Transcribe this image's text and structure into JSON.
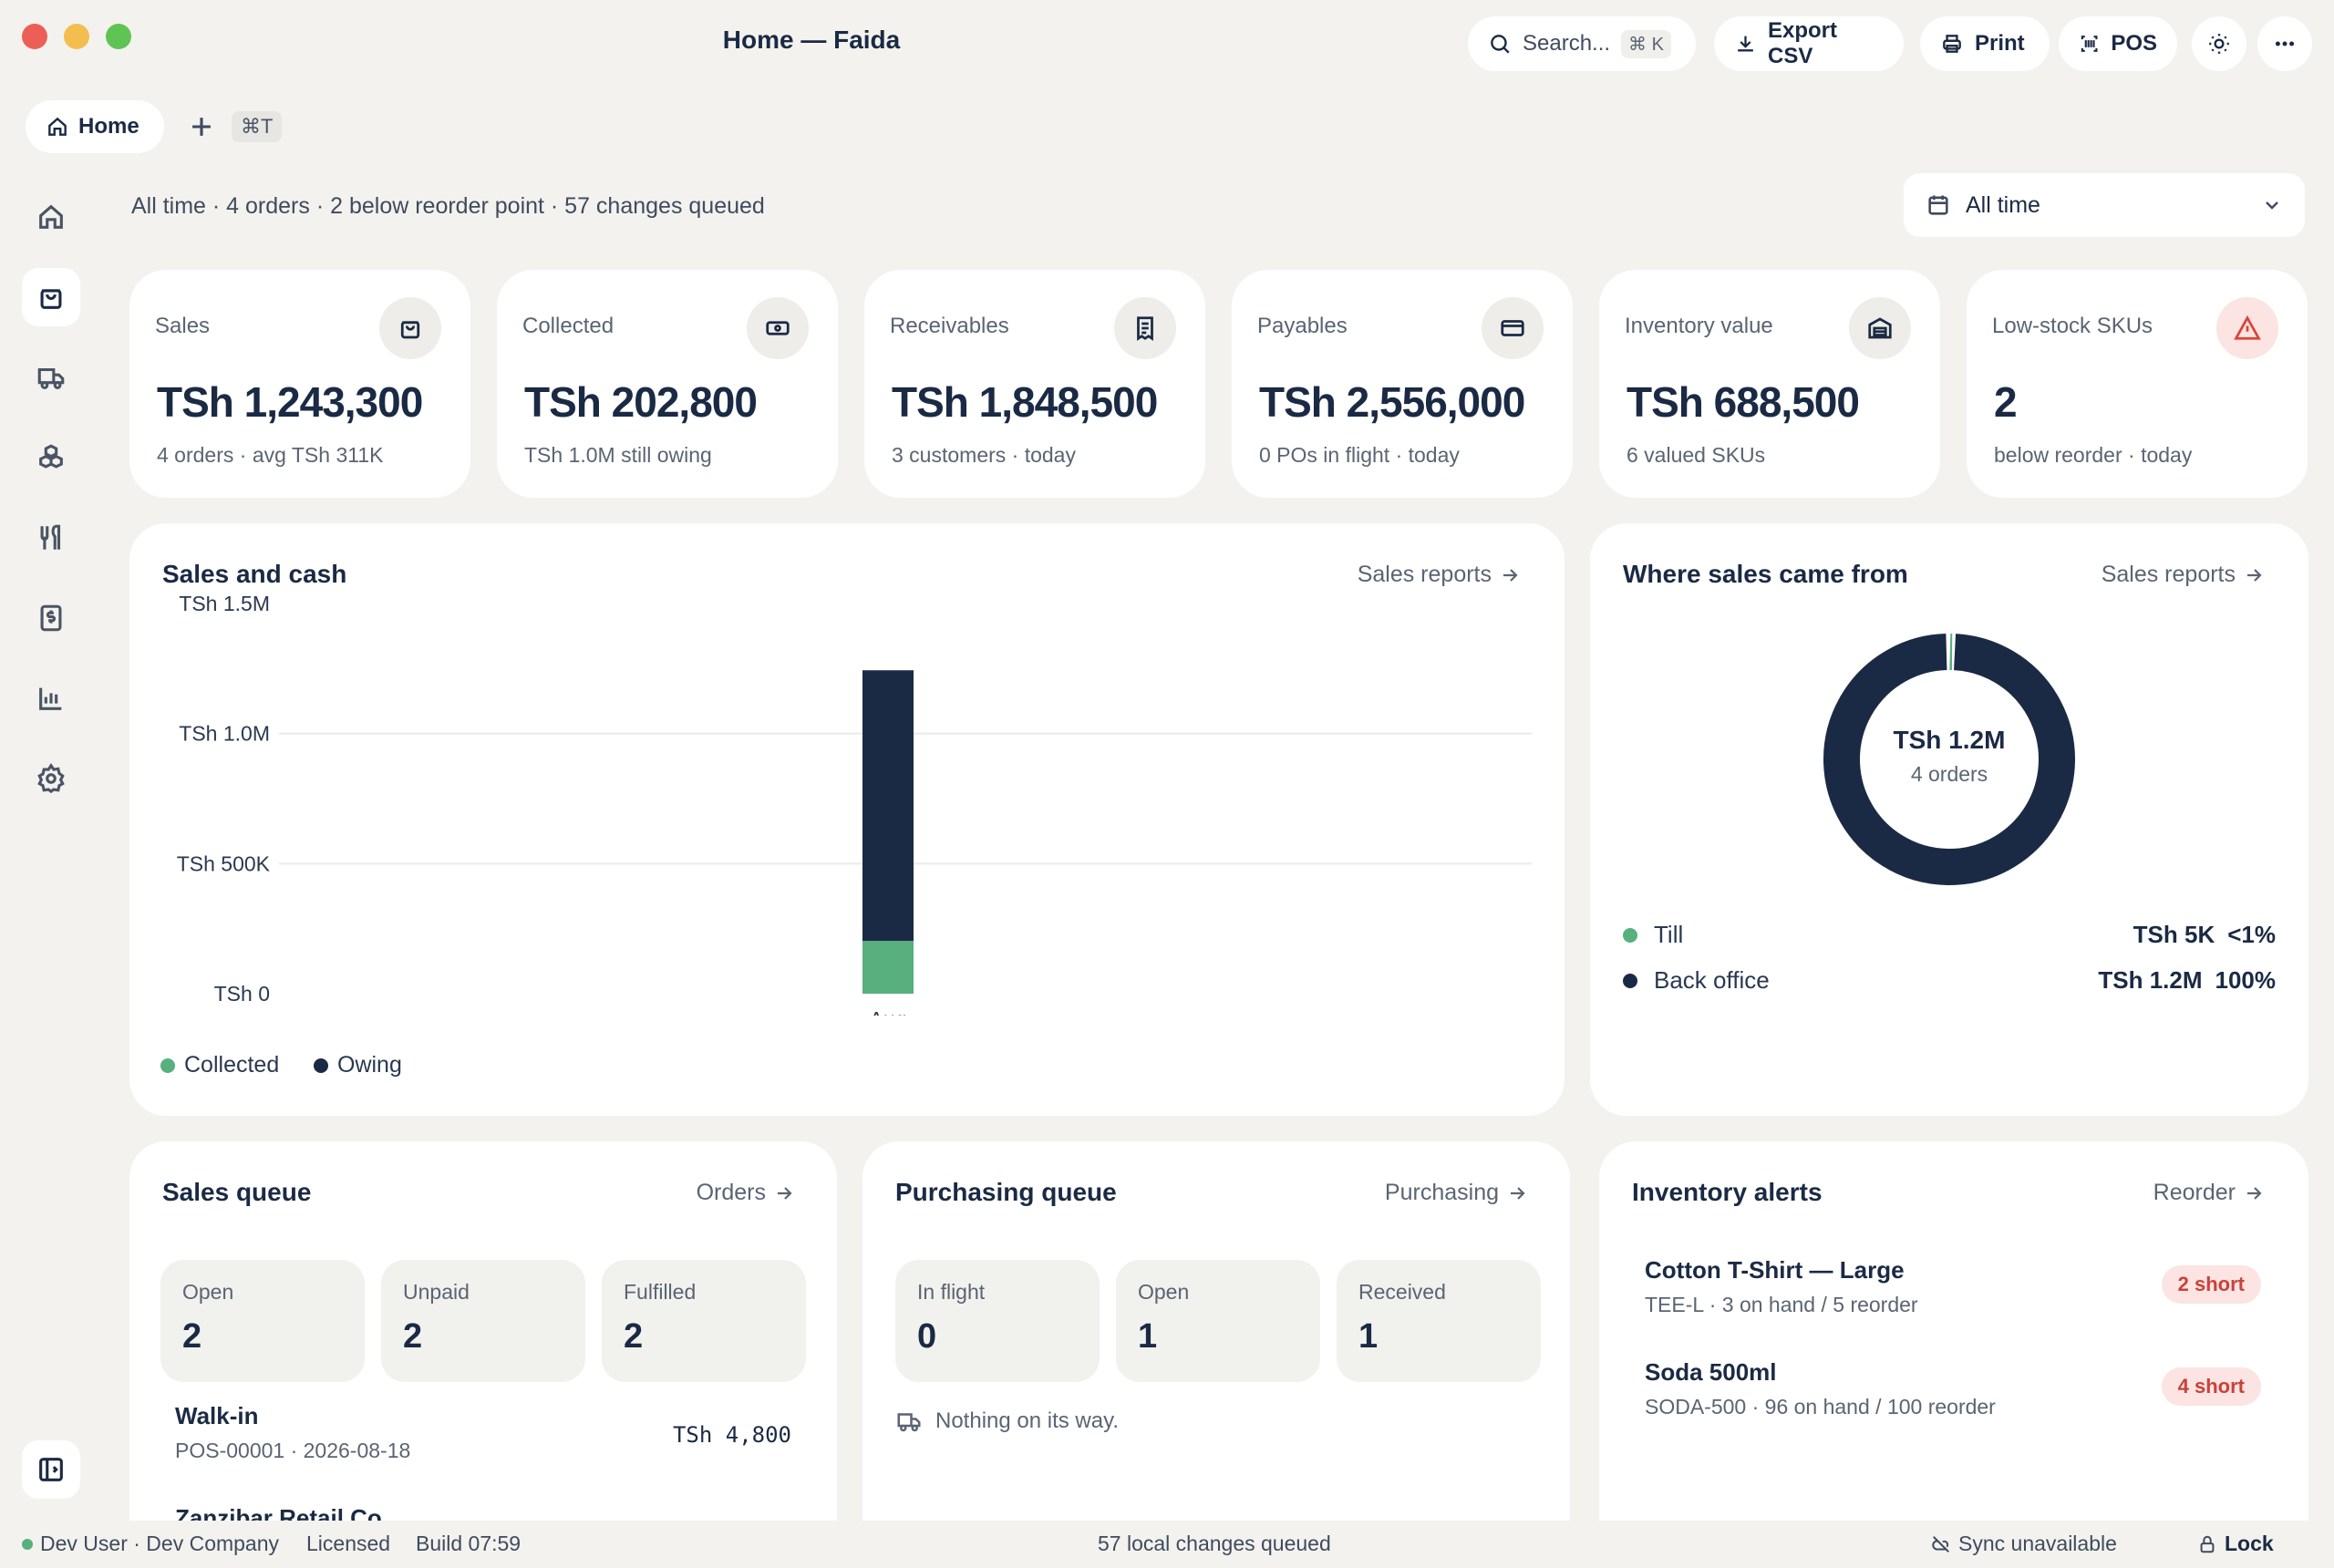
{
  "window": {
    "title": "Home — Faida"
  },
  "toolbar": {
    "search_label": "Search...",
    "search_shortcut": "⌘ K",
    "export_label": "Export CSV",
    "print_label": "Print",
    "pos_label": "POS"
  },
  "tabs": {
    "home_label": "Home",
    "new_tab_shortcut": "⌘T"
  },
  "summary": {
    "text": "All time · 4 orders · 2 below reorder point · 57 changes queued",
    "period_select": "All time"
  },
  "kpis": [
    {
      "label": "Sales",
      "value": "TSh 1,243,300",
      "sub": "4 orders · avg TSh 311K",
      "icon": "shopping-bag-icon"
    },
    {
      "label": "Collected",
      "value": "TSh 202,800",
      "sub": "TSh 1.0M still owing",
      "icon": "banknote-icon"
    },
    {
      "label": "Receivables",
      "value": "TSh 1,848,500",
      "sub": "3 customers · today",
      "icon": "receipt-icon"
    },
    {
      "label": "Payables",
      "value": "TSh 2,556,000",
      "sub": "0 POs in flight · today",
      "icon": "credit-card-icon"
    },
    {
      "label": "Inventory value",
      "value": "TSh 688,500",
      "sub": "6 valued SKUs",
      "icon": "warehouse-icon"
    },
    {
      "label": "Low-stock SKUs",
      "value": "2",
      "sub": "below reorder · today",
      "icon": "warning-icon"
    }
  ],
  "sales_chart": {
    "title": "Sales and cash",
    "link": "Sales reports",
    "legend": {
      "collected": "Collected",
      "owing": "Owing"
    }
  },
  "chart_data": {
    "type": "bar",
    "stacked": true,
    "categories": [
      "Aug"
    ],
    "series": [
      {
        "name": "Collected",
        "values": [
          202800
        ],
        "color": "#57b07d"
      },
      {
        "name": "Owing",
        "values": [
          1040500
        ],
        "color": "#1b2a44"
      }
    ],
    "yticks": [
      "TSh 0",
      "TSh 500K",
      "TSh 1.0M",
      "TSh 1.5M"
    ],
    "ylim": [
      0,
      1500000
    ],
    "grid": true,
    "legend_position": "bottom-left"
  },
  "sources": {
    "title": "Where sales came from",
    "link": "Sales reports",
    "center_value": "TSh 1.2M",
    "center_sub": "4 orders",
    "rows": [
      {
        "name": "Till",
        "amount": "TSh 5K",
        "pct": "<1%",
        "share": 0.004,
        "color": "#57b07d"
      },
      {
        "name": "Back office",
        "amount": "TSh 1.2M",
        "pct": "100%",
        "share": 0.996,
        "color": "#1b2a44"
      }
    ]
  },
  "sales_queue": {
    "title": "Sales queue",
    "link": "Orders",
    "stats": [
      {
        "label": "Open",
        "value": "2"
      },
      {
        "label": "Unpaid",
        "value": "2"
      },
      {
        "label": "Fulfilled",
        "value": "2"
      }
    ],
    "orders": [
      {
        "name": "Walk-in",
        "sub": "POS-00001 · 2026-08-18",
        "amount": "TSh 4,800"
      },
      {
        "name": "Zanzibar Retail Co"
      }
    ]
  },
  "purchasing_queue": {
    "title": "Purchasing queue",
    "link": "Purchasing",
    "stats": [
      {
        "label": "In flight",
        "value": "0"
      },
      {
        "label": "Open",
        "value": "1"
      },
      {
        "label": "Received",
        "value": "1"
      }
    ],
    "empty": "Nothing on its way."
  },
  "inventory_alerts": {
    "title": "Inventory alerts",
    "link": "Reorder",
    "items": [
      {
        "name": "Cotton T-Shirt — Large",
        "sub": "TEE-L · 3 on hand / 5 reorder",
        "badge": "2 short"
      },
      {
        "name": "Soda 500ml",
        "sub": "SODA-500 · 96 on hand / 100 reorder",
        "badge": "4 short"
      }
    ]
  },
  "statusbar": {
    "user": "Dev User · Dev Company",
    "license": "Licensed",
    "build": "Build 07:59",
    "queued": "57 local changes queued",
    "sync": "Sync unavailable",
    "lock": "Lock"
  }
}
